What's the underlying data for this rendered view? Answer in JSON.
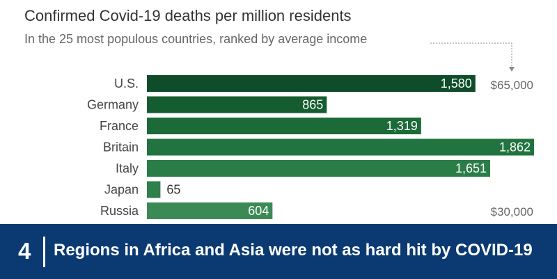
{
  "chart_data": {
    "type": "bar",
    "orientation": "horizontal",
    "title": "Confirmed Covid-19 deaths per million residents",
    "subtitle": "In the 25 most populous countries, ranked by average income",
    "categories": [
      "U.S.",
      "Germany",
      "France",
      "Britain",
      "Italy",
      "Japan",
      "Russia"
    ],
    "values": [
      1580,
      865,
      1319,
      1862,
      1651,
      65,
      604
    ],
    "value_labels": [
      "1,580",
      "865",
      "1,319",
      "1,862",
      "1,651",
      "65",
      "604"
    ],
    "bar_colors": [
      "#0f4d2a",
      "#155d31",
      "#1b6a37",
      "#217440",
      "#2a7d47",
      "#2f804b",
      "#3b8a55"
    ],
    "annotations": {
      "top": "$65,000",
      "bottom": "$30,000"
    },
    "grid": false,
    "legend": "none"
  },
  "banner": {
    "number": "4",
    "text": "Regions in Africa and Asia were not as hard hit by COVID-19",
    "background": "#0b3a73"
  }
}
